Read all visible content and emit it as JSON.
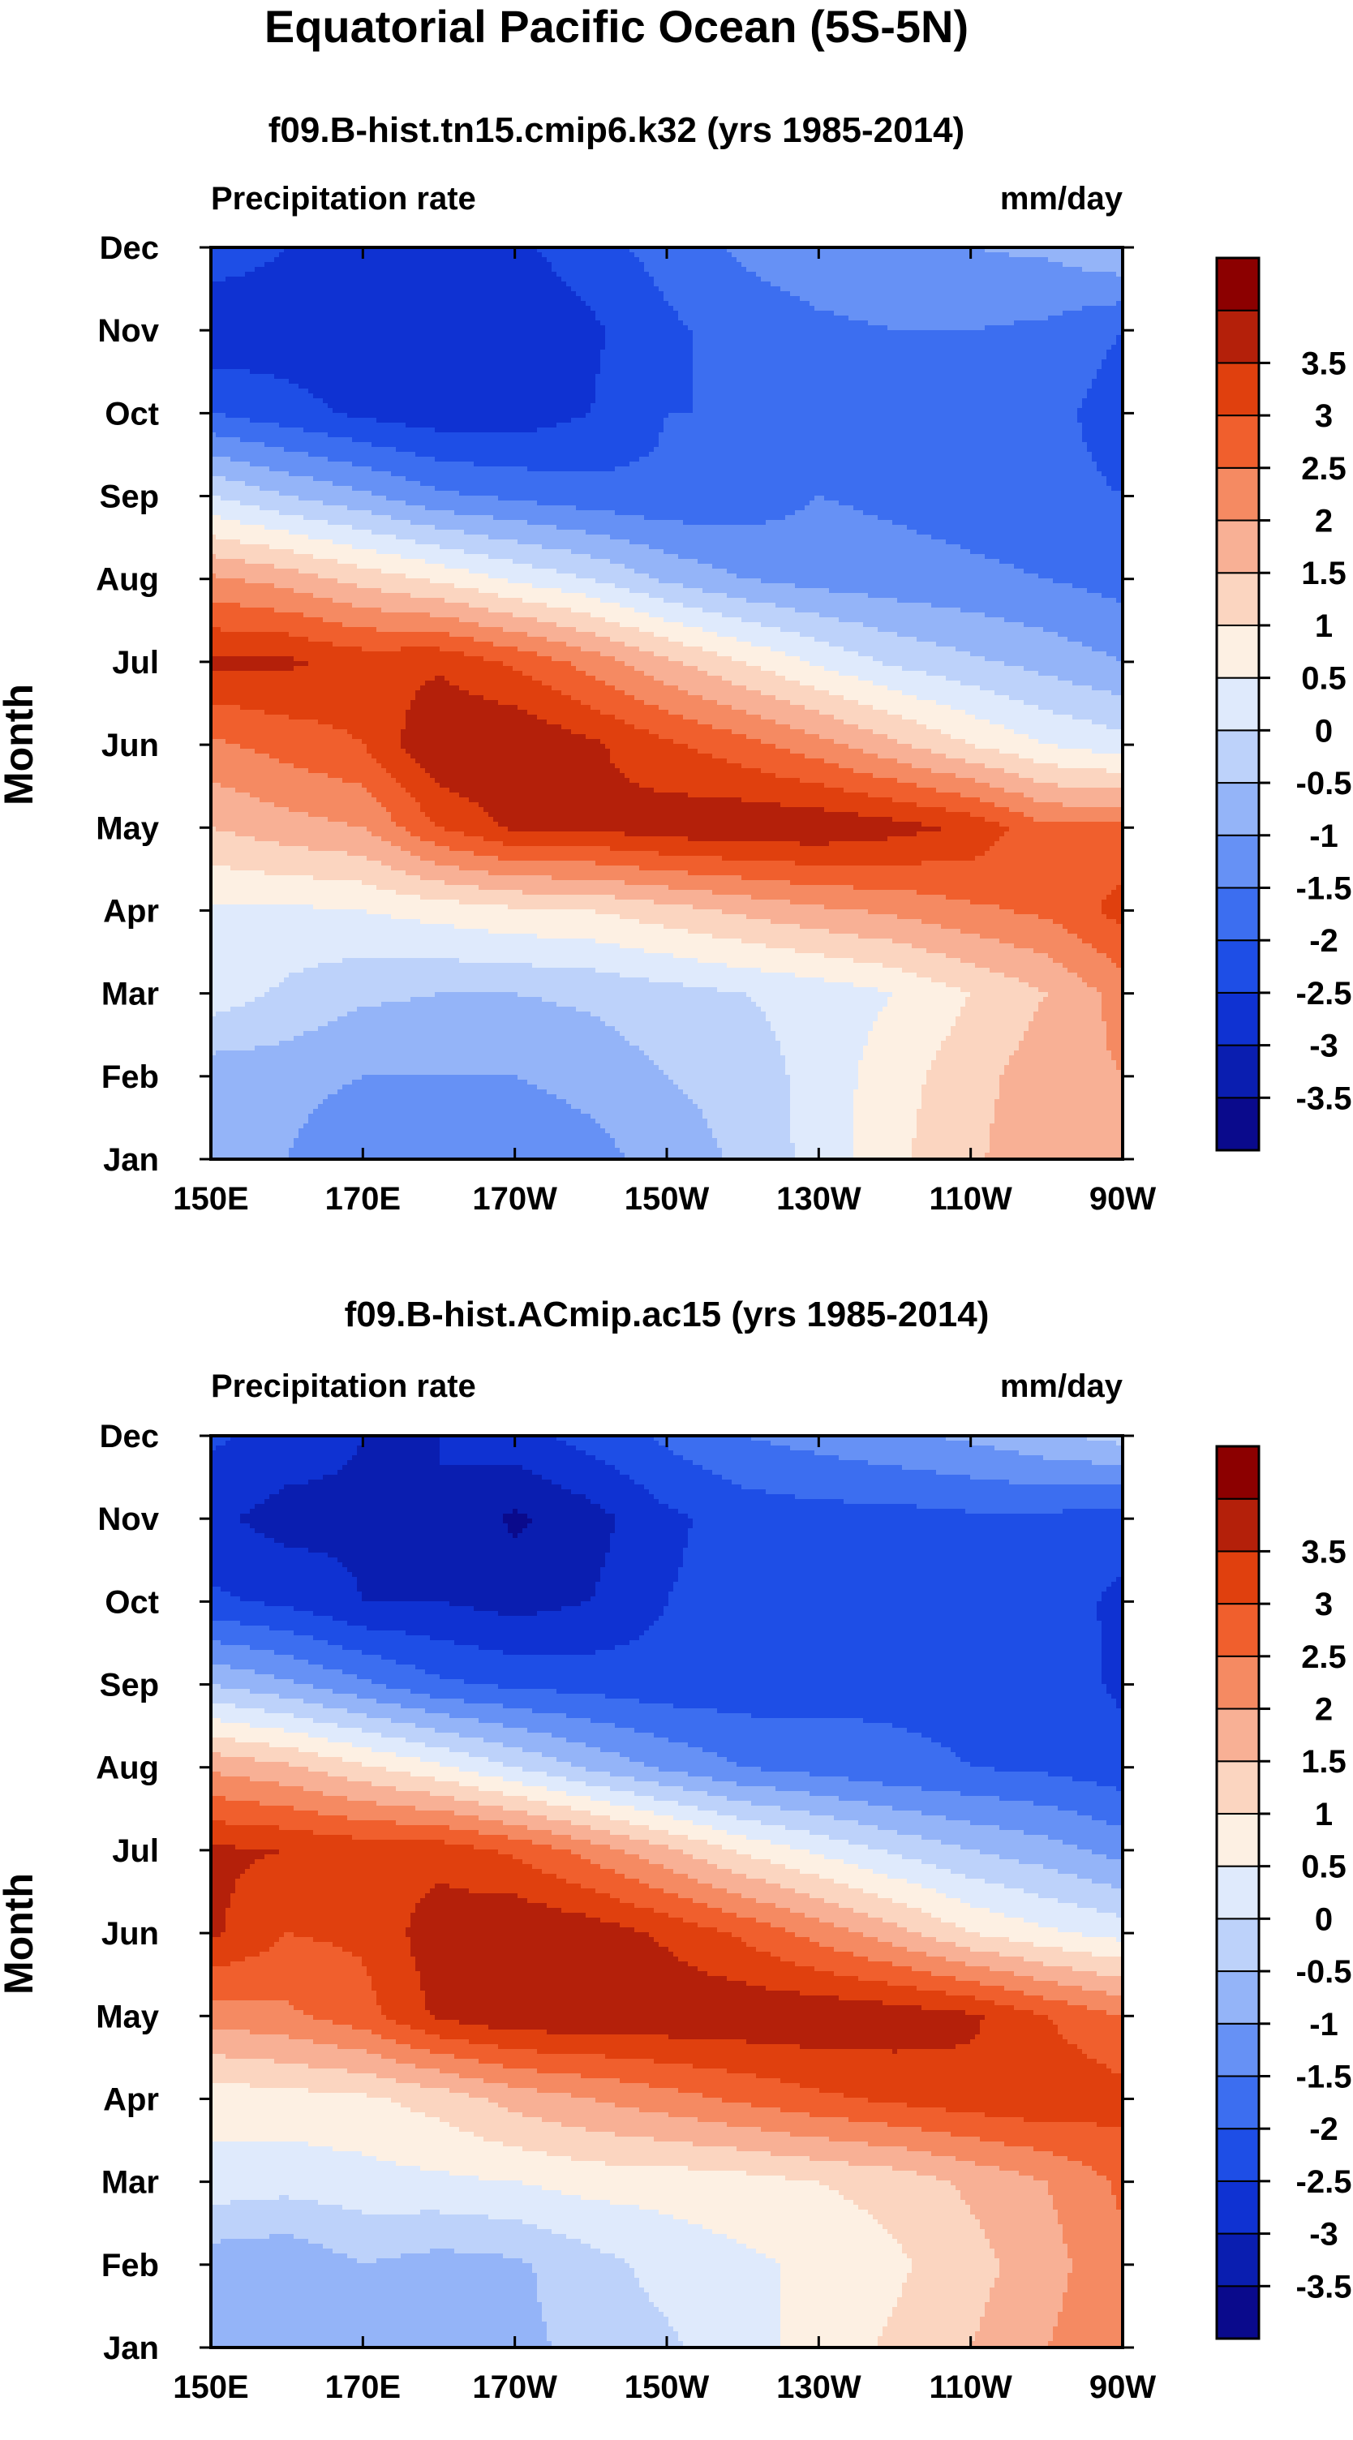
{
  "figure": {
    "title": "Equatorial Pacific Ocean (5S-5N)"
  },
  "chart_data": [
    {
      "type": "heatmap",
      "title": "f09.B-hist.tn15.cmip6.k32 (yrs 1985-2014)",
      "left_label": "Precipitation rate",
      "units": "mm/day",
      "ylabel": "Month",
      "xlabel": "",
      "x_ticks": [
        "150E",
        "170E",
        "170W",
        "150W",
        "130W",
        "110W",
        "90W"
      ],
      "x_values": [
        150,
        170,
        190,
        210,
        230,
        250,
        270
      ],
      "y_ticks": [
        "Jan",
        "Feb",
        "Mar",
        "Apr",
        "May",
        "Jun",
        "Jul",
        "Aug",
        "Sep",
        "Oct",
        "Nov",
        "Dec"
      ],
      "xlim": [
        150,
        270
      ],
      "ylim": [
        1,
        12
      ],
      "colorbar": {
        "levels": [
          -3.5,
          -3,
          -2.5,
          -2,
          -1.5,
          -1,
          -0.5,
          0,
          0.5,
          1,
          1.5,
          2,
          2.5,
          3,
          3.5
        ],
        "labels": [
          "-3.5",
          "-3",
          "-2.5",
          "-2",
          "-1.5",
          "-1",
          "-0.5",
          "0",
          "0.5",
          "1",
          "1.5",
          "2",
          "2.5",
          "3",
          "3.5"
        ],
        "colors": [
          "#0a0a8c",
          "#0a1eb0",
          "#0f32d2",
          "#1e4ee6",
          "#3c6ef0",
          "#6691f5",
          "#94b4f8",
          "#bdd2fa",
          "#dfeafc",
          "#fdf0e3",
          "#fbd5c0",
          "#f8b095",
          "#f58a62",
          "#f05f2d",
          "#e0400e",
          "#b4200a",
          "#8c0000"
        ]
      },
      "grid": [
        [
          -1.0,
          -1.0,
          -1.5,
          -1.2,
          -1.5,
          -1.2,
          -0.8,
          -0.4,
          0.2,
          0.9,
          1.4,
          1.9,
          2.0
        ],
        [
          -0.8,
          -0.8,
          -1.0,
          -1.0,
          -1.0,
          -0.8,
          -0.5,
          -0.3,
          0.2,
          0.8,
          1.3,
          1.8,
          2.0
        ],
        [
          0.3,
          -0.1,
          -0.4,
          -0.5,
          -0.5,
          -0.4,
          -0.2,
          0.0,
          0.2,
          0.5,
          1.0,
          1.5,
          2.2
        ],
        [
          0.4,
          0.4,
          0.5,
          0.7,
          0.9,
          1.0,
          1.3,
          1.6,
          1.9,
          2.1,
          2.4,
          2.6,
          3.2
        ],
        [
          1.5,
          1.8,
          2.0,
          3.0,
          3.6,
          3.6,
          3.8,
          3.9,
          3.9,
          3.7,
          3.4,
          2.6,
          2.6
        ],
        [
          2.4,
          2.7,
          3.0,
          4.0,
          4.0,
          3.6,
          3.1,
          2.7,
          2.2,
          1.6,
          1.0,
          0.5,
          0.2
        ],
        [
          3.6,
          3.6,
          3.3,
          3.4,
          2.9,
          2.3,
          1.6,
          1.0,
          0.4,
          -0.1,
          -0.4,
          -0.7,
          -1.0
        ],
        [
          2.1,
          1.8,
          1.3,
          0.9,
          0.4,
          0.0,
          -0.6,
          -1.0,
          -1.2,
          -1.3,
          -1.4,
          -1.5,
          -1.7
        ],
        [
          0.0,
          -0.5,
          -0.9,
          -1.4,
          -1.6,
          -1.8,
          -1.9,
          -1.8,
          -1.5,
          -1.6,
          -1.7,
          -1.8,
          -2.0
        ],
        [
          -2.0,
          -2.3,
          -2.6,
          -2.8,
          -2.8,
          -2.5,
          -2.0,
          -2.0,
          -1.8,
          -1.8,
          -1.8,
          -1.8,
          -2.3
        ],
        [
          -2.9,
          -2.8,
          -2.9,
          -3.0,
          -3.0,
          -2.6,
          -2.1,
          -1.8,
          -1.6,
          -1.5,
          -1.5,
          -1.6,
          -2.0
        ],
        [
          -2.2,
          -2.5,
          -2.7,
          -2.8,
          -2.6,
          -2.2,
          -1.8,
          -1.4,
          -1.2,
          -1.1,
          -1.0,
          -0.9,
          -0.5
        ]
      ]
    },
    {
      "type": "heatmap",
      "title": "f09.B-hist.ACmip.ac15 (yrs 1985-2014)",
      "left_label": "Precipitation rate",
      "units": "mm/day",
      "ylabel": "Month",
      "xlabel": "",
      "x_ticks": [
        "150E",
        "170E",
        "170W",
        "150W",
        "130W",
        "110W",
        "90W"
      ],
      "x_values": [
        150,
        170,
        190,
        210,
        230,
        250,
        270
      ],
      "y_ticks": [
        "Jan",
        "Feb",
        "Mar",
        "Apr",
        "May",
        "Jun",
        "Jul",
        "Aug",
        "Sep",
        "Oct",
        "Nov",
        "Dec"
      ],
      "xlim": [
        150,
        270
      ],
      "ylim": [
        1,
        12
      ],
      "colorbar": {
        "levels": [
          -3.5,
          -3,
          -2.5,
          -2,
          -1.5,
          -1,
          -0.5,
          0,
          0.5,
          1,
          1.5,
          2,
          2.5,
          3,
          3.5
        ],
        "labels": [
          "-3.5",
          "-3",
          "-2.5",
          "-2",
          "-1.5",
          "-1",
          "-0.5",
          "0",
          "0.5",
          "1",
          "1.5",
          "2",
          "2.5",
          "3",
          "3.5"
        ],
        "colors": [
          "#0a0a8c",
          "#0a1eb0",
          "#0f32d2",
          "#1e4ee6",
          "#3c6ef0",
          "#6691f5",
          "#94b4f8",
          "#bdd2fa",
          "#dfeafc",
          "#fdf0e3",
          "#fbd5c0",
          "#f8b095",
          "#f58a62",
          "#f05f2d",
          "#e0400e",
          "#b4200a",
          "#8c0000"
        ]
      },
      "grid": [
        [
          -1.0,
          -1.0,
          -0.8,
          -0.8,
          -0.6,
          -0.4,
          -0.1,
          0.3,
          0.7,
          1.1,
          1.5,
          2.0,
          2.4
        ],
        [
          -0.8,
          -0.9,
          -0.5,
          -0.7,
          -0.6,
          -0.2,
          0.2,
          0.4,
          0.6,
          0.9,
          1.3,
          1.8,
          2.4
        ],
        [
          0.3,
          0.2,
          0.3,
          0.4,
          0.5,
          0.7,
          0.7,
          0.8,
          1.0,
          1.2,
          1.6,
          2.0,
          2.6
        ],
        [
          0.7,
          0.8,
          0.9,
          1.2,
          1.7,
          2.0,
          2.3,
          2.6,
          2.9,
          3.1,
          3.3,
          3.4,
          3.2
        ],
        [
          2.2,
          2.4,
          2.8,
          3.6,
          3.9,
          3.9,
          3.9,
          3.9,
          3.9,
          3.8,
          3.6,
          3.0,
          2.5
        ],
        [
          3.6,
          3.0,
          3.1,
          3.8,
          4.0,
          3.8,
          3.4,
          2.9,
          2.3,
          1.7,
          1.0,
          0.6,
          0.3
        ],
        [
          3.6,
          3.5,
          3.3,
          3.3,
          2.9,
          2.3,
          1.6,
          0.9,
          0.4,
          -0.1,
          -0.5,
          -0.8,
          -1.2
        ],
        [
          1.9,
          1.6,
          1.1,
          0.6,
          0.0,
          -0.6,
          -1.1,
          -1.5,
          -1.7,
          -1.9,
          -2.0,
          -2.1,
          -2.3
        ],
        [
          -0.5,
          -0.9,
          -1.4,
          -1.9,
          -2.1,
          -2.2,
          -2.3,
          -2.3,
          -2.2,
          -2.1,
          -2.1,
          -2.2,
          -2.6
        ],
        [
          -2.4,
          -2.6,
          -3.0,
          -3.0,
          -3.2,
          -3.0,
          -2.5,
          -2.3,
          -2.3,
          -2.3,
          -2.3,
          -2.3,
          -2.6
        ],
        [
          -2.9,
          -3.2,
          -3.1,
          -3.0,
          -3.6,
          -3.2,
          -2.6,
          -2.3,
          -2.2,
          -2.2,
          -2.1,
          -2.1,
          -2.3
        ],
        [
          -2.4,
          -2.7,
          -3.0,
          -3.0,
          -2.7,
          -2.3,
          -1.9,
          -1.5,
          -1.3,
          -1.1,
          -0.9,
          -0.6,
          -0.3
        ]
      ]
    }
  ]
}
